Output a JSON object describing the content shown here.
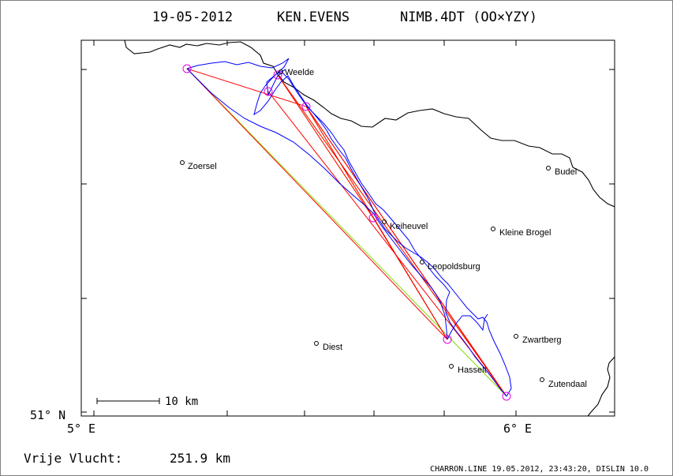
{
  "header": {
    "date": "19-05-2012",
    "pilot": "KEN.EVENS",
    "glider": "NIMB.4DT (OO×YZY)"
  },
  "axes": {
    "lat_label": "51° N",
    "lon_left_label": "5° E",
    "lon_right_label": "6° E"
  },
  "scale_bar": {
    "label": "10 km"
  },
  "footer": {
    "result_label": "Vrije Vlucht:",
    "result_value": "251.9 km",
    "credit": "CHARRON.LINE 19.05.2012, 23:43:20, DISLIN 10.0"
  },
  "places": [
    {
      "name": "Weelde"
    },
    {
      "name": "Zoersel"
    },
    {
      "name": "Budel"
    },
    {
      "name": "Keiheuvel"
    },
    {
      "name": "Kleine Brogel"
    },
    {
      "name": "Leopoldsburg"
    },
    {
      "name": "Zwartberg"
    },
    {
      "name": "Diest"
    },
    {
      "name": "Hasselt"
    },
    {
      "name": "Zutendaal"
    }
  ],
  "colors": {
    "frame": "#000000",
    "track": "#0000ff",
    "task": "#ff0000",
    "free_flight": "#80e000",
    "turnpoint": "#e000e0",
    "border": "#000000"
  }
}
